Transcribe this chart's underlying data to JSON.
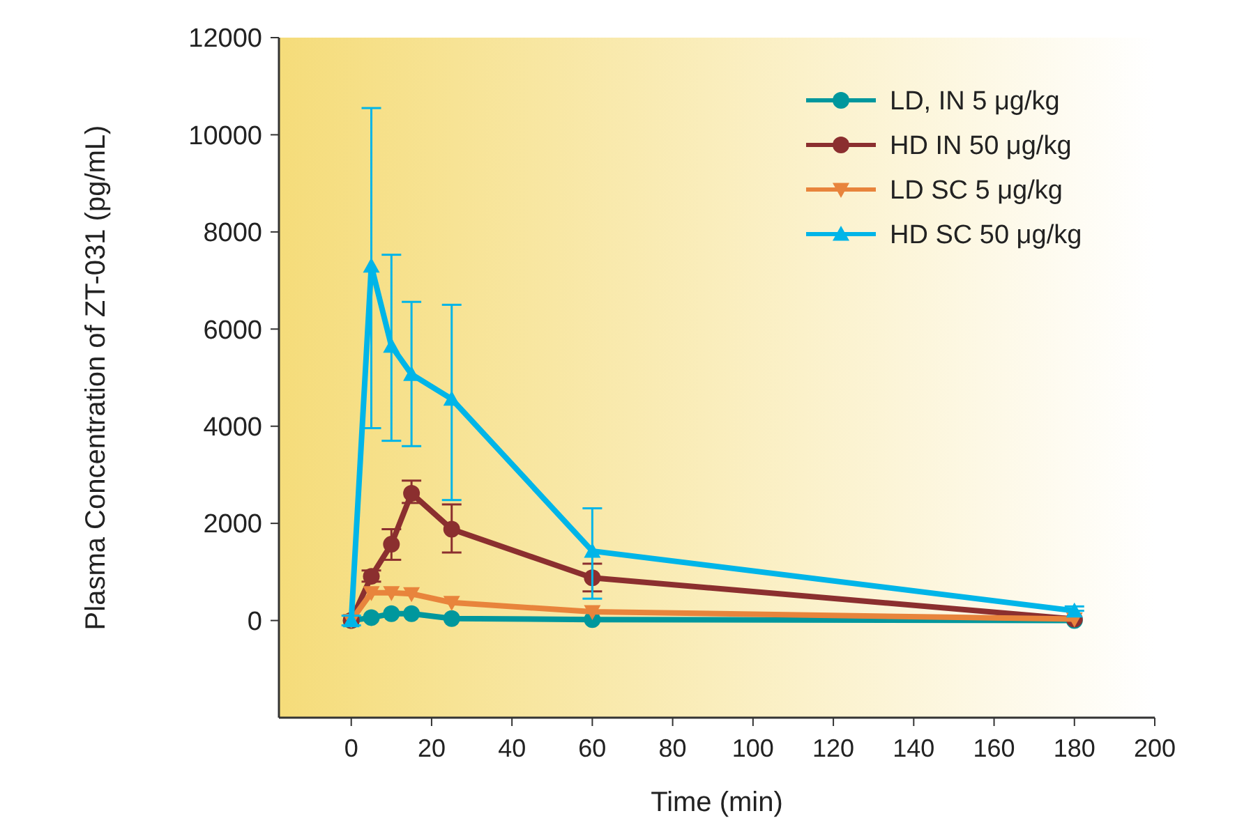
{
  "chart_data": {
    "type": "line",
    "xlabel": "Time (min)",
    "ylabel": "Plasma Concentration of ZT-031 (pg/mL)",
    "x": [
      0,
      5,
      10,
      15,
      25,
      60,
      180
    ],
    "xlim": [
      -18,
      200
    ],
    "xticks": [
      0,
      20,
      40,
      60,
      80,
      100,
      120,
      140,
      160,
      180,
      200
    ],
    "ylim": [
      -2000,
      12000
    ],
    "yticks": [
      0,
      2000,
      4000,
      6000,
      8000,
      10000,
      12000
    ],
    "grid": false,
    "legend": "top right",
    "line_style": "solid",
    "series": [
      {
        "name": "LD, IN 5 μg/kg",
        "color": "#00979d",
        "marker": "circle",
        "values": [
          0,
          60,
          140,
          140,
          40,
          20,
          0
        ]
      },
      {
        "name": "HD IN 50 μg/kg",
        "color": "#8b2f2f",
        "marker": "circle",
        "values": [
          0,
          910,
          1570,
          2620,
          1880,
          880,
          30
        ],
        "errors": [
          null,
          [
            800,
            1030
          ],
          [
            1250,
            1880
          ],
          [
            2420,
            2880
          ],
          [
            1400,
            2390
          ],
          [
            600,
            1170
          ],
          null
        ]
      },
      {
        "name": "LD SC 5 μg/kg",
        "color": "#e8843c",
        "marker": "triangle-down",
        "values": [
          0,
          570,
          570,
          550,
          370,
          180,
          30
        ]
      },
      {
        "name": "HD SC 50 μg/kg",
        "color": "#00b5e8",
        "marker": "triangle",
        "values": [
          0,
          7300,
          5650,
          5070,
          4560,
          1430,
          200
        ],
        "errors": [
          [
            -100,
            100
          ],
          [
            3960,
            10550
          ],
          [
            3700,
            7530
          ],
          [
            3590,
            6560
          ],
          [
            2480,
            6500
          ],
          [
            450,
            2310
          ],
          [
            200,
            290
          ]
        ]
      }
    ]
  }
}
